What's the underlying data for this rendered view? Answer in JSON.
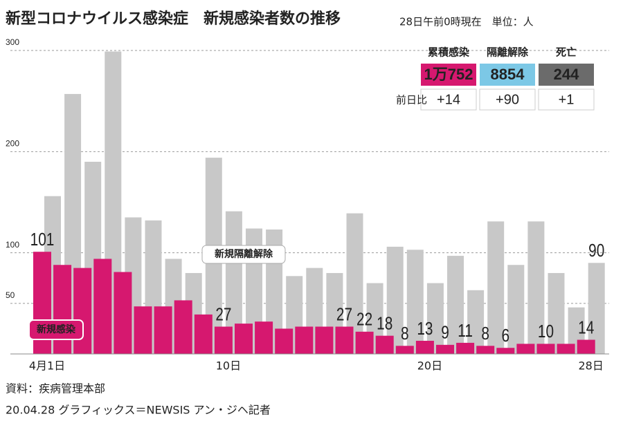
{
  "chart_data": {
    "type": "bar",
    "title": "新型コロナウイルス感染症　新規感染者数の推移",
    "subtitle": "28日午前0時現在　単位：人",
    "categories": [
      "4月1日",
      null,
      null,
      null,
      null,
      null,
      null,
      null,
      null,
      "10日",
      null,
      null,
      null,
      null,
      null,
      null,
      null,
      null,
      null,
      "20日",
      null,
      null,
      null,
      null,
      null,
      null,
      null,
      "28日"
    ],
    "series": [
      {
        "name": "新規隔離解除",
        "color": "#c8c8c8",
        "values": [
          156,
          257,
          190,
          299,
          135,
          132,
          94,
          80,
          194,
          141,
          124,
          123,
          77,
          85,
          80,
          139,
          70,
          106,
          103,
          70,
          97,
          63,
          131,
          88,
          131,
          80,
          46,
          90
        ],
        "value_labels": [
          null,
          null,
          null,
          null,
          null,
          null,
          null,
          null,
          null,
          null,
          null,
          null,
          null,
          null,
          null,
          null,
          null,
          null,
          null,
          null,
          null,
          null,
          null,
          null,
          null,
          null,
          null,
          "90"
        ]
      },
      {
        "name": "新規感染",
        "color": "#d6186f",
        "values": [
          101,
          88,
          85,
          94,
          81,
          47,
          47,
          53,
          39,
          27,
          30,
          32,
          25,
          27,
          27,
          27,
          22,
          18,
          8,
          13,
          9,
          11,
          8,
          6,
          10,
          10,
          10,
          14
        ],
        "value_labels": [
          "101",
          null,
          null,
          null,
          null,
          null,
          null,
          null,
          null,
          "27",
          null,
          null,
          null,
          null,
          null,
          "27",
          "22",
          "18",
          "8",
          "13",
          "9",
          "11",
          "8",
          "6",
          null,
          "10",
          null,
          "14"
        ]
      }
    ],
    "ylim": [
      0,
      300
    ],
    "yticks": [
      50,
      100,
      200,
      300
    ],
    "grid": true,
    "summary": {
      "headers": [
        "累積感染",
        "隔離解除",
        "死亡"
      ],
      "totals": [
        "1万752",
        "8854",
        "244"
      ],
      "diff_label": "前日比",
      "diffs": [
        "+14",
        "+90",
        "+1"
      ]
    },
    "source": "資料：疾病管理本部",
    "credit": "20.04.28 グラフィックス＝NEWSIS アン・ジヘ記者"
  }
}
